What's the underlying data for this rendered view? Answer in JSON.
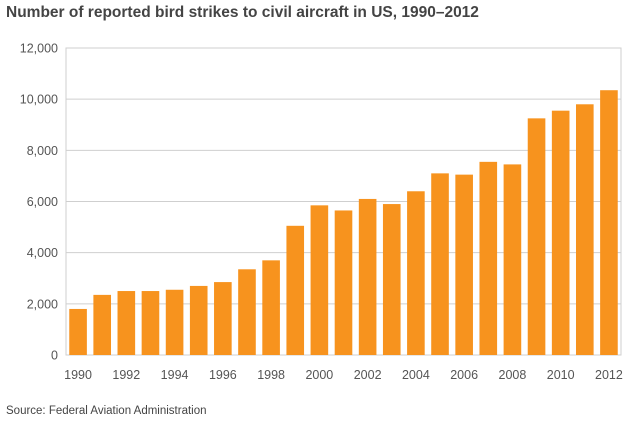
{
  "title": "Number of reported bird strikes to civil aircraft in US, 1990–2012",
  "source": "Source:  Federal Aviation Administration",
  "chart_data": {
    "type": "bar",
    "title": "Number of reported bird strikes to civil aircraft in US, 1990–2012",
    "xlabel": "",
    "ylabel": "",
    "categories": [
      "1990",
      "1991",
      "1992",
      "1993",
      "1994",
      "1995",
      "1996",
      "1997",
      "1998",
      "1999",
      "2000",
      "2001",
      "2002",
      "2003",
      "2004",
      "2005",
      "2006",
      "2007",
      "2008",
      "2009",
      "2010",
      "2011",
      "2012"
    ],
    "values": [
      1800,
      2350,
      2500,
      2500,
      2550,
      2700,
      2850,
      3350,
      3700,
      5050,
      5850,
      5650,
      6100,
      5900,
      6400,
      7100,
      7050,
      7550,
      7450,
      9250,
      9550,
      9800,
      10350
    ],
    "x_tick_labels": [
      "1990",
      "1992",
      "1994",
      "1996",
      "1998",
      "2000",
      "2002",
      "2004",
      "2006",
      "2008",
      "2010",
      "2012"
    ],
    "y_tick_labels": [
      "0",
      "2,000",
      "4,000",
      "6,000",
      "8,000",
      "10,000",
      "12,000"
    ],
    "ylim": [
      0,
      12000
    ],
    "grid": "horizontal",
    "bar_color": "#F7931E"
  }
}
